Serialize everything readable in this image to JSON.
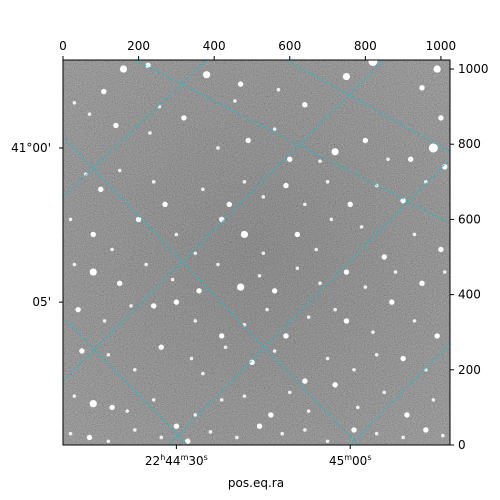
{
  "chart_data": {
    "type": "image",
    "description_colormap": "gray",
    "pixel_axes": {
      "x_range": [
        0,
        1024
      ],
      "y_range": [
        0,
        1024
      ],
      "top_ticks": [
        0,
        200,
        400,
        600,
        800,
        1000
      ],
      "right_ticks": [
        0,
        200,
        400,
        600,
        800,
        1000
      ]
    },
    "world_axes": {
      "xlabel": "pos.eq.ra",
      "ra_ticks": [
        {
          "label_main": "22",
          "h": "h",
          "min": "44",
          "m": "m",
          "sec": "30",
          "s": "s",
          "px": 300
        },
        {
          "label_main": "",
          "h": "",
          "min": "45",
          "m": "m",
          "sec": "00",
          "s": "s",
          "px": 760
        }
      ],
      "dec_ticks": [
        {
          "label": "41°00'",
          "py": 790
        },
        {
          "label": "05'",
          "py": 380
        }
      ]
    },
    "grid_color": "#17becf",
    "grid_lines_neg_slope": [
      {
        "x0": 190,
        "y0": 1024,
        "x1": 1024,
        "y1": 590
      },
      {
        "x0": -40,
        "y0": 860,
        "x1": 780,
        "y1": 0
      },
      {
        "x0": -40,
        "y0": 380,
        "x1": 330,
        "y1": 0
      },
      {
        "x0": 590,
        "y0": 1024,
        "x1": 1024,
        "y1": 780
      }
    ],
    "grid_lines_pos_slope": [
      {
        "x0": 0,
        "y0": 660,
        "x1": 380,
        "y1": 1024
      },
      {
        "x0": 0,
        "y0": 170,
        "x1": 850,
        "y1": 1024
      },
      {
        "x0": 280,
        "y0": 0,
        "x1": 1024,
        "y1": 760
      },
      {
        "x0": 760,
        "y0": 0,
        "x1": 1024,
        "y1": 270
      }
    ],
    "stars": [
      [
        108,
        940,
        3
      ],
      [
        160,
        1000,
        4
      ],
      [
        225,
        1010,
        3
      ],
      [
        255,
        900,
        2
      ],
      [
        380,
        985,
        4
      ],
      [
        455,
        915,
        2
      ],
      [
        470,
        960,
        3
      ],
      [
        570,
        945,
        2
      ],
      [
        640,
        905,
        3
      ],
      [
        750,
        980,
        4
      ],
      [
        820,
        1020,
        5
      ],
      [
        950,
        950,
        3
      ],
      [
        990,
        1000,
        4
      ],
      [
        1000,
        870,
        3
      ],
      [
        30,
        910,
        2
      ],
      [
        70,
        880,
        2
      ],
      [
        140,
        850,
        3
      ],
      [
        230,
        830,
        2
      ],
      [
        320,
        870,
        3
      ],
      [
        410,
        790,
        2
      ],
      [
        490,
        810,
        3
      ],
      [
        560,
        840,
        2
      ],
      [
        600,
        760,
        3
      ],
      [
        680,
        755,
        2
      ],
      [
        720,
        780,
        4
      ],
      [
        800,
        810,
        3
      ],
      [
        860,
        760,
        2
      ],
      [
        920,
        760,
        3
      ],
      [
        980,
        790,
        5
      ],
      [
        1010,
        740,
        3
      ],
      [
        60,
        720,
        2
      ],
      [
        100,
        680,
        3
      ],
      [
        150,
        730,
        2
      ],
      [
        240,
        700,
        2
      ],
      [
        270,
        640,
        3
      ],
      [
        370,
        680,
        2
      ],
      [
        440,
        640,
        3
      ],
      [
        480,
        700,
        2
      ],
      [
        530,
        660,
        2
      ],
      [
        590,
        690,
        3
      ],
      [
        640,
        640,
        2
      ],
      [
        700,
        700,
        2
      ],
      [
        760,
        640,
        3
      ],
      [
        830,
        690,
        2
      ],
      [
        900,
        650,
        3
      ],
      [
        960,
        700,
        2
      ],
      [
        20,
        600,
        2
      ],
      [
        80,
        560,
        3
      ],
      [
        130,
        520,
        2
      ],
      [
        200,
        600,
        3
      ],
      [
        300,
        560,
        2
      ],
      [
        350,
        510,
        2
      ],
      [
        420,
        600,
        3
      ],
      [
        480,
        560,
        4
      ],
      [
        530,
        510,
        2
      ],
      [
        620,
        560,
        3
      ],
      [
        670,
        520,
        2
      ],
      [
        710,
        600,
        2
      ],
      [
        790,
        580,
        2
      ],
      [
        850,
        500,
        3
      ],
      [
        930,
        560,
        2
      ],
      [
        1000,
        520,
        3
      ],
      [
        30,
        480,
        2
      ],
      [
        80,
        460,
        4
      ],
      [
        150,
        430,
        3
      ],
      [
        220,
        480,
        2
      ],
      [
        290,
        440,
        2
      ],
      [
        360,
        410,
        3
      ],
      [
        410,
        480,
        2
      ],
      [
        470,
        420,
        4
      ],
      [
        520,
        450,
        2
      ],
      [
        560,
        410,
        3
      ],
      [
        620,
        470,
        2
      ],
      [
        680,
        430,
        2
      ],
      [
        750,
        460,
        3
      ],
      [
        800,
        420,
        2
      ],
      [
        880,
        460,
        2
      ],
      [
        950,
        430,
        3
      ],
      [
        1010,
        460,
        2
      ],
      [
        40,
        360,
        3
      ],
      [
        110,
        330,
        2
      ],
      [
        180,
        370,
        2
      ],
      [
        240,
        370,
        3
      ],
      [
        300,
        380,
        3
      ],
      [
        350,
        330,
        2
      ],
      [
        420,
        290,
        3
      ],
      [
        480,
        320,
        2
      ],
      [
        540,
        360,
        2
      ],
      [
        590,
        290,
        3
      ],
      [
        650,
        340,
        2
      ],
      [
        720,
        360,
        2
      ],
      [
        750,
        330,
        3
      ],
      [
        820,
        300,
        2
      ],
      [
        870,
        380,
        3
      ],
      [
        930,
        330,
        2
      ],
      [
        990,
        290,
        3
      ],
      [
        50,
        250,
        3
      ],
      [
        120,
        240,
        2
      ],
      [
        190,
        200,
        2
      ],
      [
        260,
        260,
        3
      ],
      [
        340,
        230,
        2
      ],
      [
        370,
        190,
        2
      ],
      [
        430,
        260,
        2
      ],
      [
        500,
        220,
        3
      ],
      [
        560,
        250,
        2
      ],
      [
        640,
        170,
        3
      ],
      [
        700,
        230,
        2
      ],
      [
        770,
        200,
        2
      ],
      [
        830,
        240,
        2
      ],
      [
        900,
        230,
        3
      ],
      [
        960,
        200,
        2
      ],
      [
        30,
        130,
        2
      ],
      [
        80,
        110,
        4
      ],
      [
        130,
        100,
        3
      ],
      [
        170,
        90,
        2
      ],
      [
        240,
        120,
        2
      ],
      [
        300,
        50,
        3
      ],
      [
        350,
        80,
        2
      ],
      [
        420,
        120,
        2
      ],
      [
        480,
        130,
        2
      ],
      [
        550,
        80,
        3
      ],
      [
        600,
        140,
        2
      ],
      [
        650,
        90,
        2
      ],
      [
        720,
        160,
        3
      ],
      [
        780,
        100,
        2
      ],
      [
        850,
        140,
        2
      ],
      [
        910,
        80,
        3
      ],
      [
        980,
        120,
        2
      ],
      [
        20,
        30,
        2
      ],
      [
        70,
        20,
        3
      ],
      [
        120,
        10,
        2
      ],
      [
        190,
        40,
        2
      ],
      [
        260,
        20,
        2
      ],
      [
        330,
        10,
        3
      ],
      [
        390,
        35,
        2
      ],
      [
        460,
        20,
        2
      ],
      [
        520,
        50,
        3
      ],
      [
        580,
        30,
        2
      ],
      [
        640,
        40,
        2
      ],
      [
        700,
        10,
        2
      ],
      [
        770,
        40,
        3
      ],
      [
        830,
        30,
        2
      ],
      [
        900,
        20,
        2
      ],
      [
        960,
        40,
        3
      ],
      [
        1005,
        25,
        2
      ]
    ]
  }
}
